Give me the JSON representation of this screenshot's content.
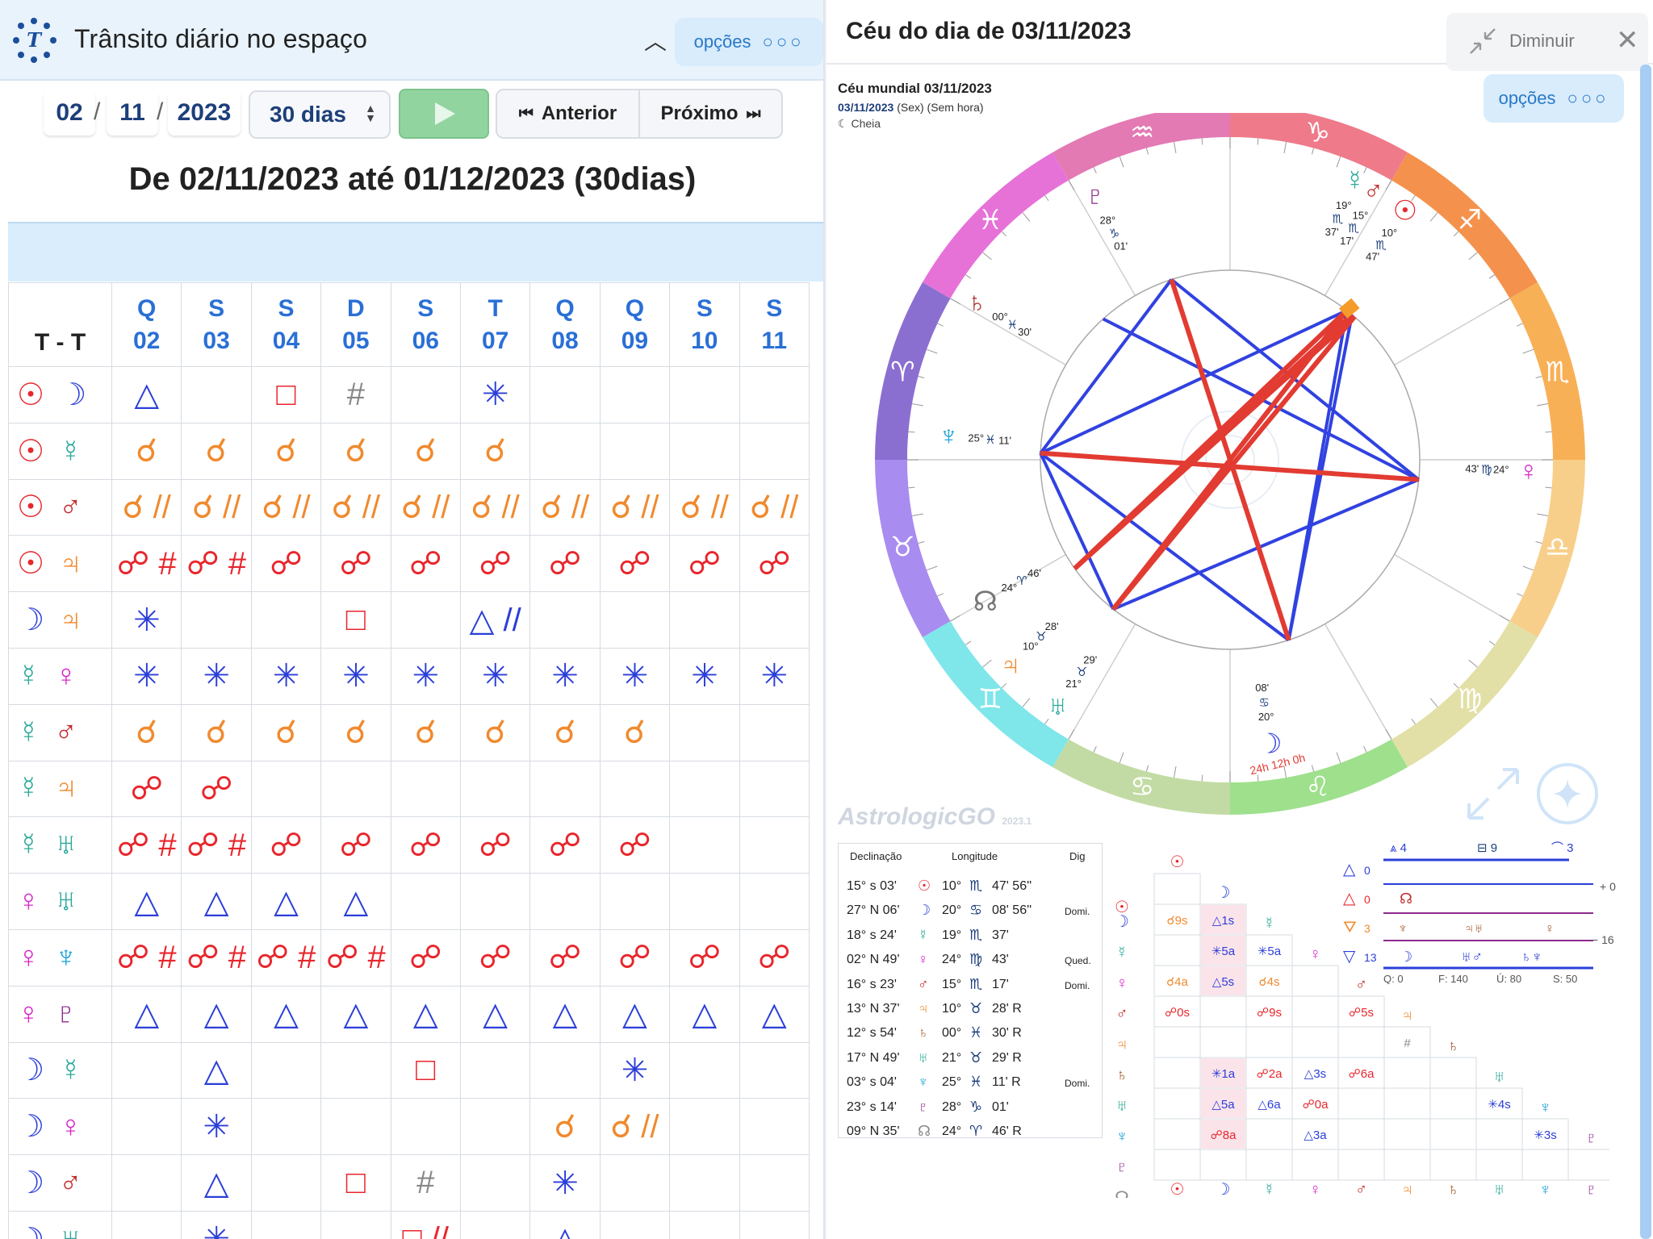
{
  "left": {
    "title": "Trânsito diário no espaço",
    "options_label": "opções",
    "date": {
      "day": "02",
      "month": "11",
      "year": "2023"
    },
    "period": "30 dias",
    "prev": "Anterior",
    "next": "Próximo",
    "range_title": "De 02/11/2023 até 01/12/2023 (30dias)",
    "corner": "T - T",
    "columns": [
      {
        "w": "Q",
        "d": "02"
      },
      {
        "w": "S",
        "d": "03"
      },
      {
        "w": "S",
        "d": "04"
      },
      {
        "w": "D",
        "d": "05"
      },
      {
        "w": "S",
        "d": "06"
      },
      {
        "w": "T",
        "d": "07"
      },
      {
        "w": "Q",
        "d": "08"
      },
      {
        "w": "Q",
        "d": "09"
      },
      {
        "w": "S",
        "d": "10"
      },
      {
        "w": "S",
        "d": "11"
      }
    ],
    "rows": [
      {
        "p": [
          "☉",
          "☽"
        ],
        "pc": [
          "r",
          "b"
        ],
        "cells": [
          [
            "△",
            "b"
          ],
          "",
          [
            "□",
            "r"
          ],
          [
            "#",
            "g"
          ],
          "",
          [
            "✳",
            "b"
          ],
          "",
          "",
          "",
          ""
        ]
      },
      {
        "p": [
          "☉",
          "☿"
        ],
        "pc": [
          "r",
          "tl"
        ],
        "cells": [
          [
            "☌",
            "o"
          ],
          [
            "☌",
            "o"
          ],
          [
            "☌",
            "o"
          ],
          [
            "☌",
            "o"
          ],
          [
            "☌",
            "o"
          ],
          [
            "☌",
            "o"
          ],
          "",
          "",
          "",
          ""
        ]
      },
      {
        "p": [
          "☉",
          "♂"
        ],
        "pc": [
          "r",
          "dr"
        ],
        "cells": [
          [
            "☌ //",
            "o"
          ],
          [
            "☌ //",
            "o"
          ],
          [
            "☌ //",
            "o"
          ],
          [
            "☌ //",
            "o"
          ],
          [
            "☌ //",
            "o"
          ],
          [
            "☌ //",
            "o"
          ],
          [
            "☌ //",
            "o"
          ],
          [
            "☌ //",
            "o"
          ],
          [
            "☌ //",
            "o"
          ],
          [
            "☌ //",
            "o"
          ]
        ]
      },
      {
        "p": [
          "☉",
          "♃"
        ],
        "pc": [
          "r",
          "o"
        ],
        "cells": [
          [
            "☍ #",
            "r"
          ],
          [
            "☍ #",
            "r"
          ],
          [
            "☍",
            "r"
          ],
          [
            "☍",
            "r"
          ],
          [
            "☍",
            "r"
          ],
          [
            "☍",
            "r"
          ],
          [
            "☍",
            "r"
          ],
          [
            "☍",
            "r"
          ],
          [
            "☍",
            "r"
          ],
          [
            "☍",
            "r"
          ]
        ]
      },
      {
        "p": [
          "☽",
          "♃"
        ],
        "pc": [
          "b",
          "o"
        ],
        "cells": [
          [
            "✳",
            "b"
          ],
          "",
          "",
          [
            "□",
            "r"
          ],
          "",
          [
            "△ //",
            "b"
          ],
          "",
          "",
          "",
          ""
        ]
      },
      {
        "p": [
          "☿",
          "♀"
        ],
        "pc": [
          "tl",
          "pk"
        ],
        "cells": [
          [
            "✳",
            "b"
          ],
          [
            "✳",
            "b"
          ],
          [
            "✳",
            "b"
          ],
          [
            "✳",
            "b"
          ],
          [
            "✳",
            "b"
          ],
          [
            "✳",
            "b"
          ],
          [
            "✳",
            "b"
          ],
          [
            "✳",
            "b"
          ],
          [
            "✳",
            "b"
          ],
          [
            "✳",
            "b"
          ]
        ]
      },
      {
        "p": [
          "☿",
          "♂"
        ],
        "pc": [
          "tl",
          "dr"
        ],
        "cells": [
          [
            "☌",
            "o"
          ],
          [
            "☌",
            "o"
          ],
          [
            "☌",
            "o"
          ],
          [
            "☌",
            "o"
          ],
          [
            "☌",
            "o"
          ],
          [
            "☌",
            "o"
          ],
          [
            "☌",
            "o"
          ],
          [
            "☌",
            "o"
          ],
          "",
          ""
        ]
      },
      {
        "p": [
          "☿",
          "♃"
        ],
        "pc": [
          "tl",
          "o"
        ],
        "cells": [
          [
            "☍",
            "r"
          ],
          [
            "☍",
            "r"
          ],
          "",
          "",
          "",
          "",
          "",
          "",
          "",
          ""
        ]
      },
      {
        "p": [
          "☿",
          "♅"
        ],
        "pc": [
          "tl",
          "tl"
        ],
        "cells": [
          [
            "☍ #",
            "r"
          ],
          [
            "☍ #",
            "r"
          ],
          [
            "☍",
            "r"
          ],
          [
            "☍",
            "r"
          ],
          [
            "☍",
            "r"
          ],
          [
            "☍",
            "r"
          ],
          [
            "☍",
            "r"
          ],
          [
            "☍",
            "r"
          ],
          "",
          ""
        ]
      },
      {
        "p": [
          "♀",
          "♅"
        ],
        "pc": [
          "pk",
          "tl"
        ],
        "cells": [
          [
            "△",
            "b"
          ],
          [
            "△",
            "b"
          ],
          [
            "△",
            "b"
          ],
          [
            "△",
            "b"
          ],
          "",
          "",
          "",
          "",
          "",
          ""
        ]
      },
      {
        "p": [
          "♀",
          "♆"
        ],
        "pc": [
          "pk",
          "lb"
        ],
        "cells": [
          [
            "☍ #",
            "r"
          ],
          [
            "☍ #",
            "r"
          ],
          [
            "☍ #",
            "r"
          ],
          [
            "☍ #",
            "r"
          ],
          [
            "☍",
            "r"
          ],
          [
            "☍",
            "r"
          ],
          [
            "☍",
            "r"
          ],
          [
            "☍",
            "r"
          ],
          [
            "☍",
            "r"
          ],
          [
            "☍",
            "r"
          ]
        ]
      },
      {
        "p": [
          "♀",
          "♇"
        ],
        "pc": [
          "pk",
          "pu"
        ],
        "cells": [
          [
            "△",
            "b"
          ],
          [
            "△",
            "b"
          ],
          [
            "△",
            "b"
          ],
          [
            "△",
            "b"
          ],
          [
            "△",
            "b"
          ],
          [
            "△",
            "b"
          ],
          [
            "△",
            "b"
          ],
          [
            "△",
            "b"
          ],
          [
            "△",
            "b"
          ],
          [
            "△",
            "b"
          ]
        ]
      },
      {
        "p": [
          "☽",
          "☿"
        ],
        "pc": [
          "b",
          "tl"
        ],
        "cells": [
          "",
          [
            "△",
            "b"
          ],
          "",
          "",
          [
            "□",
            "r"
          ],
          "",
          "",
          [
            "✳",
            "b"
          ],
          "",
          ""
        ]
      },
      {
        "p": [
          "☽",
          "♀"
        ],
        "pc": [
          "b",
          "pk"
        ],
        "cells": [
          "",
          [
            "✳",
            "b"
          ],
          "",
          "",
          "",
          "",
          [
            "☌",
            "o"
          ],
          [
            "☌ //",
            "o"
          ],
          "",
          ""
        ]
      },
      {
        "p": [
          "☽",
          "♂"
        ],
        "pc": [
          "b",
          "dr"
        ],
        "cells": [
          "",
          [
            "△",
            "b"
          ],
          "",
          [
            "□",
            "r"
          ],
          [
            "#",
            "g"
          ],
          "",
          [
            "✳",
            "b"
          ],
          "",
          "",
          ""
        ]
      },
      {
        "p": [
          "☽",
          "♅"
        ],
        "pc": [
          "b",
          "tl"
        ],
        "cells": [
          "",
          [
            "✳",
            "b"
          ],
          "",
          "",
          [
            "□ //",
            "r"
          ],
          "",
          [
            "△",
            "b"
          ],
          "",
          "",
          ""
        ]
      }
    ]
  },
  "right": {
    "title": "Céu do dia de 03/11/2023",
    "minimize": "Diminuir",
    "options_label": "opções",
    "chart_title": "Céu mundial 03/11/2023",
    "chart_date": "03/11/2023",
    "chart_meta": "(Sex) (Sem hora)",
    "moon_phase": "Cheia",
    "brand": "AstrologicGO",
    "brand_version": "2023.1",
    "wheel_labels": {
      "time_marks": "24h 12h 0h"
    },
    "table_headers": {
      "decl": "Declinação",
      "long": "Longitude",
      "dig": "Dig"
    },
    "positions": [
      {
        "decl": "15° s 03'",
        "g": "☉",
        "c": "r",
        "lon": "10°",
        "sign": "♏",
        "min": "47' 56''",
        "dig": ""
      },
      {
        "decl": "27° N 06'",
        "g": "☽",
        "c": "b",
        "lon": "20°",
        "sign": "♋",
        "min": "08' 56''",
        "dig": "Domi."
      },
      {
        "decl": "18° s 24'",
        "g": "☿",
        "c": "tl",
        "lon": "19°",
        "sign": "♏",
        "min": "37'",
        "dig": ""
      },
      {
        "decl": "02° N 49'",
        "g": "♀",
        "c": "pk",
        "lon": "24°",
        "sign": "♍",
        "min": "43'",
        "dig": "Qued."
      },
      {
        "decl": "16° s 23'",
        "g": "♂",
        "c": "dr",
        "lon": "15°",
        "sign": "♏",
        "min": "17'",
        "dig": "Domi."
      },
      {
        "decl": "13° N 37'",
        "g": "♃",
        "c": "o",
        "lon": "10°",
        "sign": "♉",
        "min": "28' R",
        "dig": ""
      },
      {
        "decl": "12° s 54'",
        "g": "♄",
        "c": "br",
        "lon": "00°",
        "sign": "♓",
        "min": "30' R",
        "dig": ""
      },
      {
        "decl": "17° N 49'",
        "g": "♅",
        "c": "tl",
        "lon": "21°",
        "sign": "♉",
        "min": "29' R",
        "dig": ""
      },
      {
        "decl": "03° s 04'",
        "g": "♆",
        "c": "lb",
        "lon": "25°",
        "sign": "♓",
        "min": "11' R",
        "dig": "Domi."
      },
      {
        "decl": "23° s 14'",
        "g": "♇",
        "c": "pu",
        "lon": "28°",
        "sign": "♑",
        "min": "01'",
        "dig": ""
      },
      {
        "decl": "09° N 35'",
        "g": "☊",
        "c": "g",
        "lon": "24°",
        "sign": "♈",
        "min": "46' R",
        "dig": ""
      }
    ],
    "stats": {
      "a4": "4",
      "a9": "9",
      "a3": "3",
      "tri0": "0",
      "sq0": "0",
      "n3": "3",
      "n13": "13",
      "plus0": "+ 0",
      "minus16": "− 16",
      "q": "Q: 0",
      "f": "F: 140",
      "u": "Ú: 80",
      "s": "S: 50"
    },
    "aspect_cells": [
      {
        "col": 0,
        "row": 1,
        "t": "☌9s",
        "c": "o"
      },
      {
        "col": 1,
        "row": 1,
        "t": "△1s",
        "c": "b",
        "hl": 1
      },
      {
        "col": 1,
        "row": 2,
        "t": "✳5a",
        "c": "b",
        "hl": 1
      },
      {
        "col": 2,
        "row": 2,
        "t": "✳5a",
        "c": "b"
      },
      {
        "col": 0,
        "row": 3,
        "t": "☌4a",
        "c": "o"
      },
      {
        "col": 1,
        "row": 3,
        "t": "△5s",
        "c": "b",
        "hl": 1
      },
      {
        "col": 2,
        "row": 3,
        "t": "☌4s",
        "c": "o"
      },
      {
        "col": 0,
        "row": 4,
        "t": "☍0s",
        "c": "r"
      },
      {
        "col": 2,
        "row": 4,
        "t": "☍9s",
        "c": "r"
      },
      {
        "col": 4,
        "row": 4,
        "t": "☍5s",
        "c": "r"
      },
      {
        "col": 5,
        "row": 5,
        "t": "#",
        "c": "g"
      },
      {
        "col": 1,
        "row": 6,
        "t": "✳1a",
        "c": "b",
        "hl": 1
      },
      {
        "col": 2,
        "row": 6,
        "t": "☍2a",
        "c": "r"
      },
      {
        "col": 3,
        "row": 6,
        "t": "△3s",
        "c": "b"
      },
      {
        "col": 4,
        "row": 6,
        "t": "☍6a",
        "c": "r"
      },
      {
        "col": 1,
        "row": 7,
        "t": "△5a",
        "c": "b",
        "hl": 1
      },
      {
        "col": 2,
        "row": 7,
        "t": "△6a",
        "c": "b"
      },
      {
        "col": 3,
        "row": 7,
        "t": "☍0a",
        "c": "r"
      },
      {
        "col": 7,
        "row": 7,
        "t": "✳4s",
        "c": "b"
      },
      {
        "col": 1,
        "row": 8,
        "t": "☍8a",
        "c": "r",
        "hl": 1
      },
      {
        "col": 3,
        "row": 8,
        "t": "△3a",
        "c": "b"
      },
      {
        "col": 8,
        "row": 8,
        "t": "✳3s",
        "c": "b"
      }
    ],
    "planet_glyphs": [
      "☉",
      "☽",
      "☿",
      "♀",
      "♂",
      "♃",
      "♄",
      "♅",
      "♆",
      "♇",
      "☊"
    ],
    "planet_colors": [
      "r",
      "b",
      "tl",
      "pk",
      "dr",
      "o",
      "br",
      "tl",
      "lb",
      "pu",
      "g"
    ],
    "wheel_glyph_labels": [
      {
        "g": "♇",
        "deg": "28°",
        "sign": "♑",
        "min": "01'"
      },
      {
        "g": "♄",
        "deg": "00°",
        "sign": "♓",
        "min": "30'"
      },
      {
        "g": "♆",
        "deg": "25°",
        "sign": "♓",
        "min": "11'"
      },
      {
        "g": "☊",
        "deg": "24°",
        "sign": "♈",
        "min": "46'"
      },
      {
        "g": "♃",
        "deg": "10°",
        "sign": "♉",
        "min": "28'"
      },
      {
        "g": "♅",
        "deg": "21°",
        "sign": "♉",
        "min": "29'"
      },
      {
        "g": "☽",
        "deg": "20°",
        "sign": "♋",
        "min": "08'"
      },
      {
        "g": "♀",
        "deg": "24°",
        "sign": "♍",
        "min": "43'"
      },
      {
        "g": "☉",
        "deg": "10°",
        "sign": "♏",
        "min": "47'"
      },
      {
        "g": "♂",
        "deg": "15°",
        "sign": "♏",
        "min": "17'"
      },
      {
        "g": "☿",
        "deg": "19°",
        "sign": "♏",
        "min": "37'"
      }
    ]
  }
}
